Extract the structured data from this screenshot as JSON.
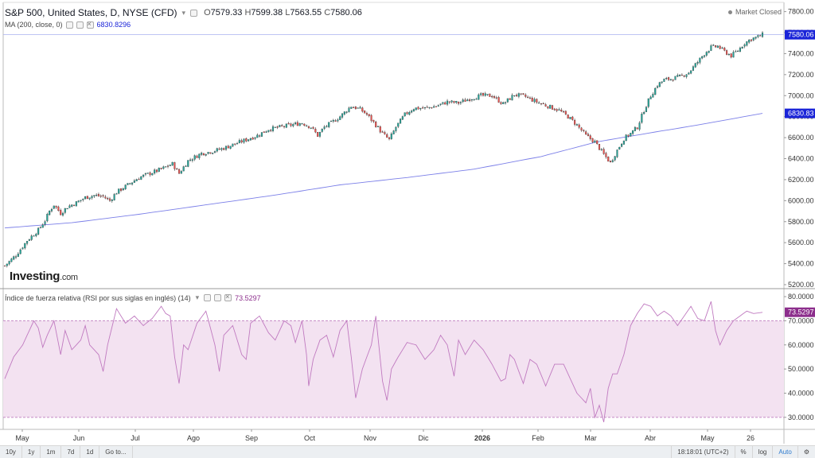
{
  "header": {
    "title": "S&P 500, United States, D, NYSE (CFD)",
    "ohlc": {
      "o_label": "O",
      "o": "7579.33",
      "h_label": "H",
      "h": "7599.38",
      "l_label": "L",
      "l": "7563.55",
      "c_label": "C",
      "c": "7580.06"
    },
    "ma_label": "MA (200, close, 0)",
    "ma_value": "6830.8296",
    "market_status": "Market Closed"
  },
  "rsi_header": {
    "label": "Índice de fuerza relativa (RSI por sus siglas en inglés) (14)",
    "value": "73.5297"
  },
  "logo": {
    "brand": "Investing",
    "suffix": ".com"
  },
  "price_axis": {
    "ticks": [
      "7800.00",
      "7600.00",
      "7400.00",
      "7200.00",
      "7000.00",
      "6800.00",
      "6600.00",
      "6400.00",
      "6200.00",
      "6000.00",
      "5800.00",
      "5600.00",
      "5400.00",
      "5200.00"
    ],
    "last_price_badge": "7580.06",
    "ma_badge": "6830.83"
  },
  "rsi_axis": {
    "ticks": [
      "80.0000",
      "70.0000",
      "60.0000",
      "50.0000",
      "40.0000",
      "30.0000"
    ],
    "value_badge": "73.5297"
  },
  "time_axis": [
    "May",
    "Jun",
    "Jul",
    "Ago",
    "Sep",
    "Oct",
    "Nov",
    "Dic",
    "2026",
    "Feb",
    "Mar",
    "Abr",
    "May",
    "26"
  ],
  "bottom_bar": {
    "ranges": [
      "10y",
      "1y",
      "1m",
      "7d",
      "1d"
    ],
    "goto": "Go to...",
    "clock": "18:18:01 (UTC+2)",
    "percent": "%",
    "log": "log",
    "auto": "Auto"
  },
  "colors": {
    "up": "#26a69a",
    "down": "#ef5350",
    "ma_line": "#7b7fe8",
    "rsi_line": "#c07ac0",
    "rsi_band": "#f3e2f1",
    "price_badge_bg": "#1a24d8",
    "rsi_badge_bg": "#8c2e8c"
  },
  "chart_data": {
    "type": "candlestick",
    "price_range": [
      5200,
      7850
    ],
    "rsi_range": [
      25,
      82
    ],
    "rsi_band": [
      30,
      70
    ],
    "price_path": [
      [
        0,
        5380
      ],
      [
        5,
        5480
      ],
      [
        10,
        5620
      ],
      [
        15,
        5720
      ],
      [
        18,
        5810
      ],
      [
        20,
        5900
      ],
      [
        22,
        5960
      ],
      [
        25,
        5880
      ],
      [
        28,
        5940
      ],
      [
        32,
        5980
      ],
      [
        36,
        6030
      ],
      [
        40,
        6050
      ],
      [
        44,
        6040
      ],
      [
        47,
        6000
      ],
      [
        50,
        6080
      ],
      [
        55,
        6150
      ],
      [
        60,
        6220
      ],
      [
        65,
        6260
      ],
      [
        70,
        6300
      ],
      [
        75,
        6350
      ],
      [
        78,
        6260
      ],
      [
        82,
        6380
      ],
      [
        88,
        6450
      ],
      [
        93,
        6470
      ],
      [
        98,
        6500
      ],
      [
        103,
        6540
      ],
      [
        108,
        6580
      ],
      [
        113,
        6620
      ],
      [
        118,
        6680
      ],
      [
        123,
        6700
      ],
      [
        128,
        6720
      ],
      [
        133,
        6740
      ],
      [
        137,
        6700
      ],
      [
        140,
        6620
      ],
      [
        143,
        6700
      ],
      [
        146,
        6740
      ],
      [
        150,
        6800
      ],
      [
        155,
        6900
      ],
      [
        159,
        6870
      ],
      [
        162,
        6820
      ],
      [
        166,
        6720
      ],
      [
        169,
        6640
      ],
      [
        172,
        6580
      ],
      [
        175,
        6700
      ],
      [
        179,
        6820
      ],
      [
        183,
        6880
      ],
      [
        188,
        6880
      ],
      [
        193,
        6900
      ],
      [
        198,
        6940
      ],
      [
        203,
        6930
      ],
      [
        208,
        6970
      ],
      [
        213,
        7000
      ],
      [
        218,
        7000
      ],
      [
        223,
        6920
      ],
      [
        228,
        7010
      ],
      [
        233,
        6990
      ],
      [
        238,
        6940
      ],
      [
        243,
        6900
      ],
      [
        248,
        6860
      ],
      [
        252,
        6800
      ],
      [
        256,
        6720
      ],
      [
        260,
        6620
      ],
      [
        264,
        6560
      ],
      [
        268,
        6440
      ],
      [
        271,
        6360
      ],
      [
        274,
        6480
      ],
      [
        277,
        6590
      ],
      [
        280,
        6640
      ],
      [
        283,
        6700
      ],
      [
        286,
        6860
      ],
      [
        289,
        7000
      ],
      [
        292,
        7100
      ],
      [
        295,
        7150
      ],
      [
        298,
        7160
      ],
      [
        302,
        7180
      ],
      [
        306,
        7220
      ],
      [
        310,
        7320
      ],
      [
        313,
        7400
      ],
      [
        316,
        7460
      ],
      [
        319,
        7470
      ],
      [
        322,
        7420
      ],
      [
        325,
        7380
      ],
      [
        328,
        7430
      ],
      [
        331,
        7500
      ],
      [
        334,
        7540
      ],
      [
        337,
        7560
      ],
      [
        339,
        7580
      ]
    ],
    "ma_path": [
      [
        0,
        5740
      ],
      [
        30,
        5790
      ],
      [
        60,
        5870
      ],
      [
        90,
        5960
      ],
      [
        120,
        6050
      ],
      [
        150,
        6150
      ],
      [
        180,
        6220
      ],
      [
        210,
        6300
      ],
      [
        240,
        6420
      ],
      [
        265,
        6560
      ],
      [
        290,
        6650
      ],
      [
        310,
        6720
      ],
      [
        339,
        6831
      ]
    ],
    "rsi_path": [
      [
        0,
        46
      ],
      [
        4,
        55
      ],
      [
        8,
        60
      ],
      [
        11,
        66
      ],
      [
        13,
        70
      ],
      [
        15,
        67
      ],
      [
        17,
        59
      ],
      [
        19,
        64
      ],
      [
        22,
        70
      ],
      [
        25,
        56
      ],
      [
        27,
        66
      ],
      [
        30,
        58
      ],
      [
        34,
        62
      ],
      [
        36,
        68
      ],
      [
        38,
        60
      ],
      [
        42,
        56
      ],
      [
        44,
        49
      ],
      [
        46,
        60
      ],
      [
        50,
        75
      ],
      [
        54,
        69
      ],
      [
        58,
        72
      ],
      [
        62,
        68
      ],
      [
        66,
        71
      ],
      [
        70,
        76
      ],
      [
        72,
        73
      ],
      [
        74,
        72
      ],
      [
        76,
        55
      ],
      [
        78,
        44
      ],
      [
        80,
        60
      ],
      [
        82,
        58
      ],
      [
        86,
        69
      ],
      [
        90,
        74
      ],
      [
        94,
        60
      ],
      [
        96,
        49
      ],
      [
        98,
        64
      ],
      [
        102,
        68
      ],
      [
        106,
        56
      ],
      [
        108,
        54
      ],
      [
        110,
        69
      ],
      [
        114,
        72
      ],
      [
        118,
        65
      ],
      [
        121,
        62
      ],
      [
        125,
        70
      ],
      [
        128,
        68
      ],
      [
        130,
        61
      ],
      [
        133,
        70
      ],
      [
        135,
        56
      ],
      [
        136,
        43
      ],
      [
        138,
        54
      ],
      [
        141,
        62
      ],
      [
        144,
        64
      ],
      [
        147,
        55
      ],
      [
        150,
        66
      ],
      [
        153,
        70
      ],
      [
        155,
        55
      ],
      [
        157,
        38
      ],
      [
        160,
        50
      ],
      [
        164,
        60
      ],
      [
        166,
        72
      ],
      [
        169,
        45
      ],
      [
        171,
        37
      ],
      [
        173,
        50
      ],
      [
        176,
        55
      ],
      [
        180,
        61
      ],
      [
        184,
        60
      ],
      [
        188,
        54
      ],
      [
        192,
        58
      ],
      [
        195,
        64
      ],
      [
        198,
        60
      ],
      [
        201,
        47
      ],
      [
        203,
        62
      ],
      [
        206,
        56
      ],
      [
        210,
        62
      ],
      [
        214,
        58
      ],
      [
        218,
        52
      ],
      [
        222,
        45
      ],
      [
        224,
        46
      ],
      [
        226,
        56
      ],
      [
        228,
        54
      ],
      [
        232,
        44
      ],
      [
        235,
        54
      ],
      [
        238,
        52
      ],
      [
        242,
        43
      ],
      [
        246,
        52
      ],
      [
        250,
        52
      ],
      [
        254,
        44
      ],
      [
        256,
        40
      ],
      [
        258,
        38
      ],
      [
        260,
        36
      ],
      [
        262,
        42
      ],
      [
        264,
        30
      ],
      [
        266,
        35
      ],
      [
        268,
        28
      ],
      [
        270,
        42
      ],
      [
        272,
        48
      ],
      [
        274,
        48
      ],
      [
        277,
        56
      ],
      [
        280,
        68
      ],
      [
        283,
        73
      ],
      [
        286,
        77
      ],
      [
        289,
        76
      ],
      [
        292,
        72
      ],
      [
        295,
        74
      ],
      [
        298,
        72
      ],
      [
        301,
        68
      ],
      [
        304,
        72
      ],
      [
        307,
        76
      ],
      [
        310,
        71
      ],
      [
        313,
        70
      ],
      [
        316,
        78
      ],
      [
        318,
        66
      ],
      [
        320,
        60
      ],
      [
        323,
        66
      ],
      [
        326,
        70
      ],
      [
        329,
        72
      ],
      [
        332,
        74
      ],
      [
        335,
        73
      ],
      [
        339,
        73.5
      ]
    ]
  }
}
